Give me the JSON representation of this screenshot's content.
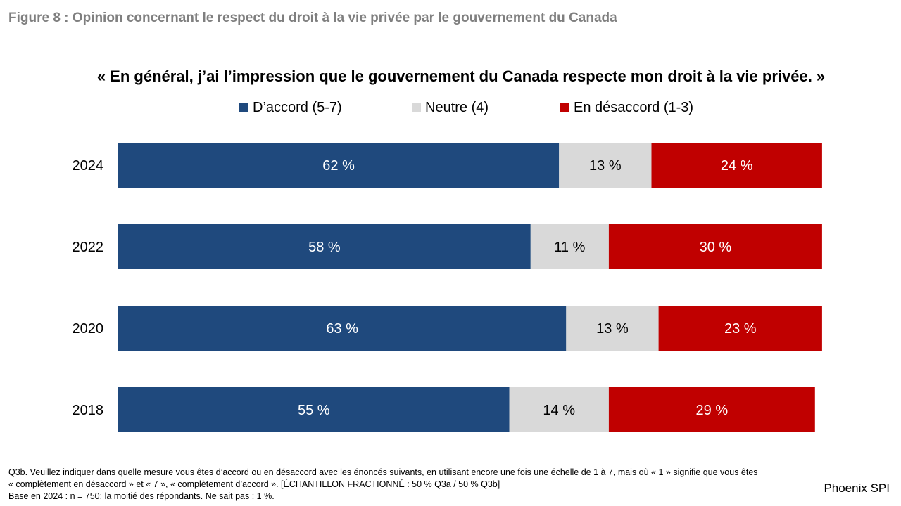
{
  "figure_title": "Figure 8 : Opinion concernant le respect du droit à la vie privée par le gouvernement du Canada",
  "chart_data": {
    "type": "bar",
    "orientation": "horizontal",
    "stacked": true,
    "title": "« En général, j’ai l’impression que le gouvernement du Canada respecte mon droit à la vie privée. »",
    "categories": [
      "2024",
      "2022",
      "2020",
      "2018"
    ],
    "series": [
      {
        "name": "D’accord (5-7)",
        "color": "#1f497d",
        "label_color": "#ffffff",
        "values": [
          62,
          58,
          63,
          55
        ],
        "labels": [
          "62 %",
          "58 %",
          "63 %",
          "55 %"
        ]
      },
      {
        "name": "Neutre (4)",
        "color": "#d9d9d9",
        "label_color": "#000000",
        "values": [
          13,
          11,
          13,
          14
        ],
        "labels": [
          "13 %",
          "11 %",
          "13 %",
          "14 %"
        ]
      },
      {
        "name": "En désaccord (1-3)",
        "color": "#c00000",
        "label_color": "#ffffff",
        "values": [
          24,
          30,
          23,
          29
        ],
        "labels": [
          "24 %",
          "30 %",
          "23 %",
          "29 %"
        ]
      }
    ],
    "xlim": [
      0,
      100
    ],
    "legend_position": "top",
    "grid": false
  },
  "footnote": {
    "line1": "Q3b. Veuillez indiquer dans quelle mesure vous êtes d’accord ou en désaccord avec les énoncés suivants, en utilisant encore une fois une échelle de 1 à 7, mais où « 1 » signifie que vous êtes",
    "line2": "« complètement en désaccord » et « 7 », « complètement d’accord ». [ÉCHANTILLON FRACTIONNÉ : 50 % Q3a / 50 % Q3b]",
    "line3": "Base en 2024 : n = 750; la moitié des répondants. Ne sait pas : 1 %."
  },
  "brand": "Phoenix SPI"
}
